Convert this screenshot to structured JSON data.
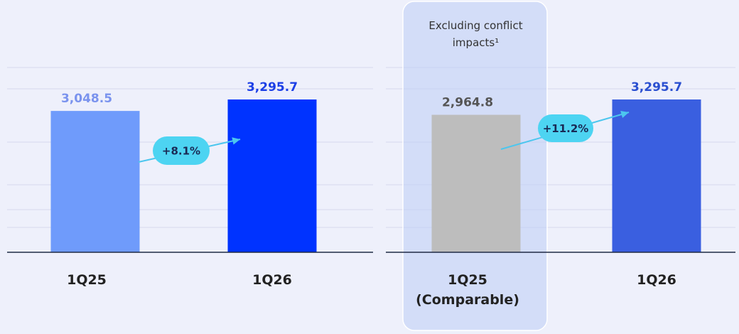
{
  "chart_data": [
    {
      "type": "bar",
      "categories": [
        "1Q25",
        "1Q26"
      ],
      "values": [
        3048.5,
        3295.7
      ],
      "value_labels": [
        "3,048.5",
        "3,295.7"
      ],
      "colors": [
        "#6f9bfb",
        "#0033ff"
      ],
      "label_colors": [
        "#7a93ee",
        "#1c3fe6"
      ],
      "annotation": "+8.1%"
    },
    {
      "type": "bar",
      "categories": [
        "1Q25 (Comparable)",
        "1Q26"
      ],
      "values": [
        2964.8,
        3295.7
      ],
      "value_labels": [
        "2,964.8",
        "3,295.7"
      ],
      "colors": [
        "#bdbdbd",
        "#3a5fe0"
      ],
      "label_colors": [
        "#555555",
        "#2a4fd0"
      ],
      "annotation": "+11.2%",
      "note": "Excluding conflict impacts¹"
    }
  ]
}
